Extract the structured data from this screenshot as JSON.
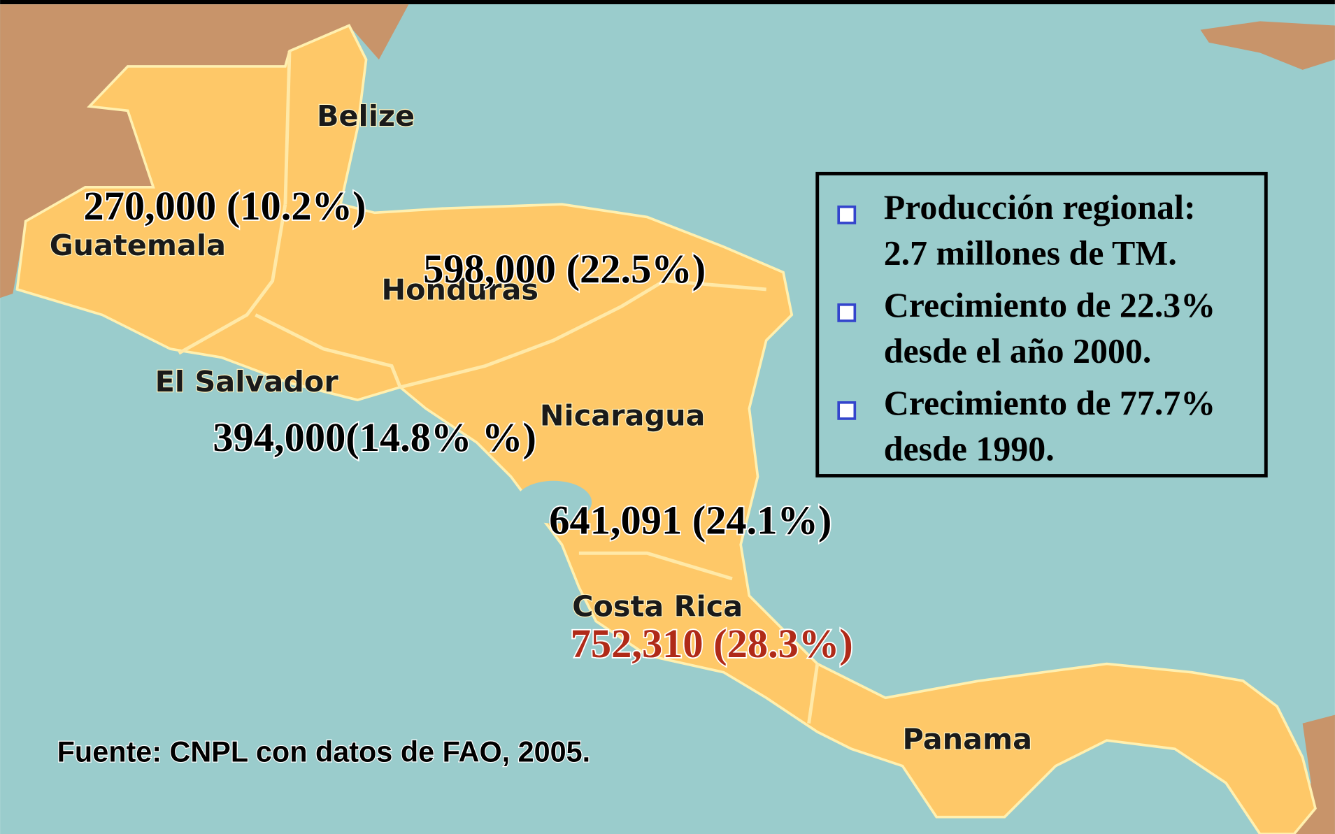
{
  "map": {
    "countries": [
      {
        "name": "Belize",
        "label": null
      },
      {
        "name": "Guatemala",
        "label": "270,000 (10.2%)"
      },
      {
        "name": "Honduras",
        "label": "598,000 (22.5%)"
      },
      {
        "name": "El Salvador",
        "label": "394,000(14.8% %)"
      },
      {
        "name": "Nicaragua",
        "label": "641,091 (24.1%)"
      },
      {
        "name": "Costa Rica",
        "label": "752,310 (28.3%)"
      },
      {
        "name": "Panama",
        "label": null
      }
    ]
  },
  "info_box": {
    "items": [
      [
        "Producción regional:",
        "2.7 millones de TM."
      ],
      [
        "Crecimiento de 22.3%",
        "desde el año 2000."
      ],
      [
        "Crecimiento de 77.7%",
        "desde 1990."
      ]
    ]
  },
  "source": "Fuente: CNPL con datos de FAO, 2005."
}
